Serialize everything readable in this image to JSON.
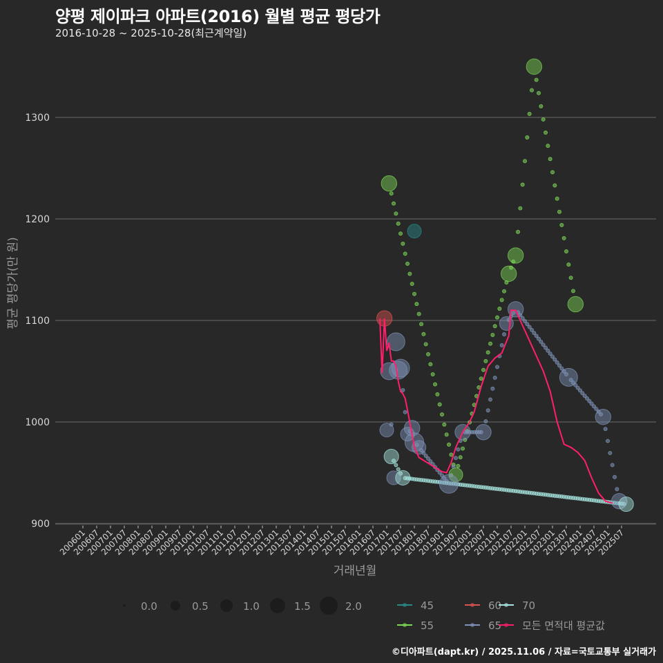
{
  "title": "양평 제이파크 아파트(2016) 월별 평균 평당가",
  "subtitle": "2016-10-28 ~ 2025-10-28(최근계약일)",
  "caption": "©디아파트(dapt.kr) / 2025.11.06 / 자료=국토교통부 실거래가",
  "chart_data": {
    "type": "scatter",
    "title": "양평 제이파크 아파트(2016) 월별 평균 평당가",
    "subtitle": "2016-10-28 ~ 2025-10-28(최근계약일)",
    "xlabel": "거래년월",
    "ylabel": "평균 평당가(만 원)",
    "ylim": [
      890,
      1360
    ],
    "yticks": [
      900,
      1000,
      1100,
      1200,
      1300
    ],
    "xticks": [
      "200601",
      "200607",
      "200701",
      "200707",
      "200801",
      "200807",
      "200901",
      "200907",
      "201001",
      "201007",
      "201101",
      "201107",
      "201201",
      "201207",
      "201301",
      "201307",
      "201401",
      "201407",
      "201501",
      "201507",
      "201601",
      "201607",
      "201701",
      "201707",
      "201801",
      "201807",
      "201901",
      "201907",
      "202001",
      "202007",
      "202101",
      "202107",
      "202201",
      "202207",
      "202301",
      "202307",
      "202401",
      "202407",
      "202501",
      "202507"
    ],
    "grid": true,
    "size_legend": {
      "title": "",
      "values": [
        "0.0",
        "0.5",
        "1.0",
        "1.5",
        "2.0"
      ]
    },
    "color_legend": [
      {
        "name": "45",
        "color": "#2a8a8a"
      },
      {
        "name": "60",
        "color": "#d9534f"
      },
      {
        "name": "70",
        "color": "#a8e6e0"
      },
      {
        "name": "55",
        "color": "#7ed957"
      },
      {
        "name": "65",
        "color": "#7f93b8"
      },
      {
        "name": "모든 면적대 평균값",
        "color": "#ff1f6b"
      }
    ],
    "series": [
      {
        "name": "45",
        "points": [
          {
            "x": "201801",
            "y": 1188,
            "size": 1.0
          }
        ]
      },
      {
        "name": "55",
        "points": [
          {
            "x": "201702",
            "y": 1235,
            "size": 1.2
          },
          {
            "x": "201907",
            "y": 948,
            "size": 1.0
          },
          {
            "x": "202106",
            "y": 1146,
            "size": 1.2
          },
          {
            "x": "202109",
            "y": 1164,
            "size": 1.2
          },
          {
            "x": "202205",
            "y": 1350,
            "size": 1.2
          },
          {
            "x": "202311",
            "y": 1116,
            "size": 1.2
          }
        ]
      },
      {
        "name": "60",
        "points": [
          {
            "x": "201612",
            "y": 1102,
            "size": 1.2
          }
        ]
      },
      {
        "name": "65",
        "points": [
          {
            "x": "201701",
            "y": 992,
            "size": 1.0
          },
          {
            "x": "201702",
            "y": 1050,
            "size": 1.4
          },
          {
            "x": "201704",
            "y": 945,
            "size": 1.0
          },
          {
            "x": "201705",
            "y": 1079,
            "size": 1.5
          },
          {
            "x": "201706",
            "y": 1051,
            "size": 1.5
          },
          {
            "x": "201707",
            "y": 1053,
            "size": 1.5
          },
          {
            "x": "201710",
            "y": 988,
            "size": 1.0
          },
          {
            "x": "201712",
            "y": 994,
            "size": 1.2
          },
          {
            "x": "201801",
            "y": 980,
            "size": 1.6
          },
          {
            "x": "201803",
            "y": 975,
            "size": 1.0
          },
          {
            "x": "201904",
            "y": 939,
            "size": 1.6
          },
          {
            "x": "201910",
            "y": 990,
            "size": 1.2
          },
          {
            "x": "202007",
            "y": 990,
            "size": 1.2
          },
          {
            "x": "202105",
            "y": 1097,
            "size": 1.0
          },
          {
            "x": "202109",
            "y": 1111,
            "size": 1.2
          },
          {
            "x": "202308",
            "y": 1044,
            "size": 1.5
          },
          {
            "x": "202411",
            "y": 1005,
            "size": 1.2
          },
          {
            "x": "202506",
            "y": 922,
            "size": 1.2
          }
        ]
      },
      {
        "name": "70",
        "points": [
          {
            "x": "201703",
            "y": 966,
            "size": 1.1
          },
          {
            "x": "201708",
            "y": 945,
            "size": 1.1
          },
          {
            "x": "202509",
            "y": 919,
            "size": 1.1
          }
        ]
      }
    ],
    "average_line": {
      "name": "모든 면적대 평균값",
      "points": [
        [
          "201610",
          1102
        ],
        [
          "201611",
          1048
        ],
        [
          "201612",
          1102
        ],
        [
          "201701",
          1070
        ],
        [
          "201702",
          1078
        ],
        [
          "201703",
          1060
        ],
        [
          "201704",
          1060
        ],
        [
          "201705",
          1055
        ],
        [
          "201706",
          1040
        ],
        [
          "201707",
          1030
        ],
        [
          "201708",
          1028
        ],
        [
          "201709",
          1023
        ],
        [
          "201710",
          1012
        ],
        [
          "201801",
          975
        ],
        [
          "201803",
          965
        ],
        [
          "201901",
          951
        ],
        [
          "201903",
          950
        ],
        [
          "201905",
          960
        ],
        [
          "201907",
          975
        ],
        [
          "201910",
          990
        ],
        [
          "202001",
          1000
        ],
        [
          "202003",
          1010
        ],
        [
          "202006",
          1035
        ],
        [
          "202009",
          1055
        ],
        [
          "202012",
          1063
        ],
        [
          "202103",
          1068
        ],
        [
          "202106",
          1085
        ],
        [
          "202107",
          1110
        ],
        [
          "202109",
          1110
        ],
        [
          "202112",
          1095
        ],
        [
          "202203",
          1080
        ],
        [
          "202206",
          1065
        ],
        [
          "202209",
          1050
        ],
        [
          "202212",
          1030
        ],
        [
          "202303",
          1000
        ],
        [
          "202306",
          978
        ],
        [
          "202309",
          975
        ],
        [
          "202312",
          970
        ],
        [
          "202403",
          962
        ],
        [
          "202406",
          945
        ],
        [
          "202409",
          930
        ],
        [
          "202412",
          922
        ],
        [
          "202503",
          920
        ]
      ]
    }
  }
}
